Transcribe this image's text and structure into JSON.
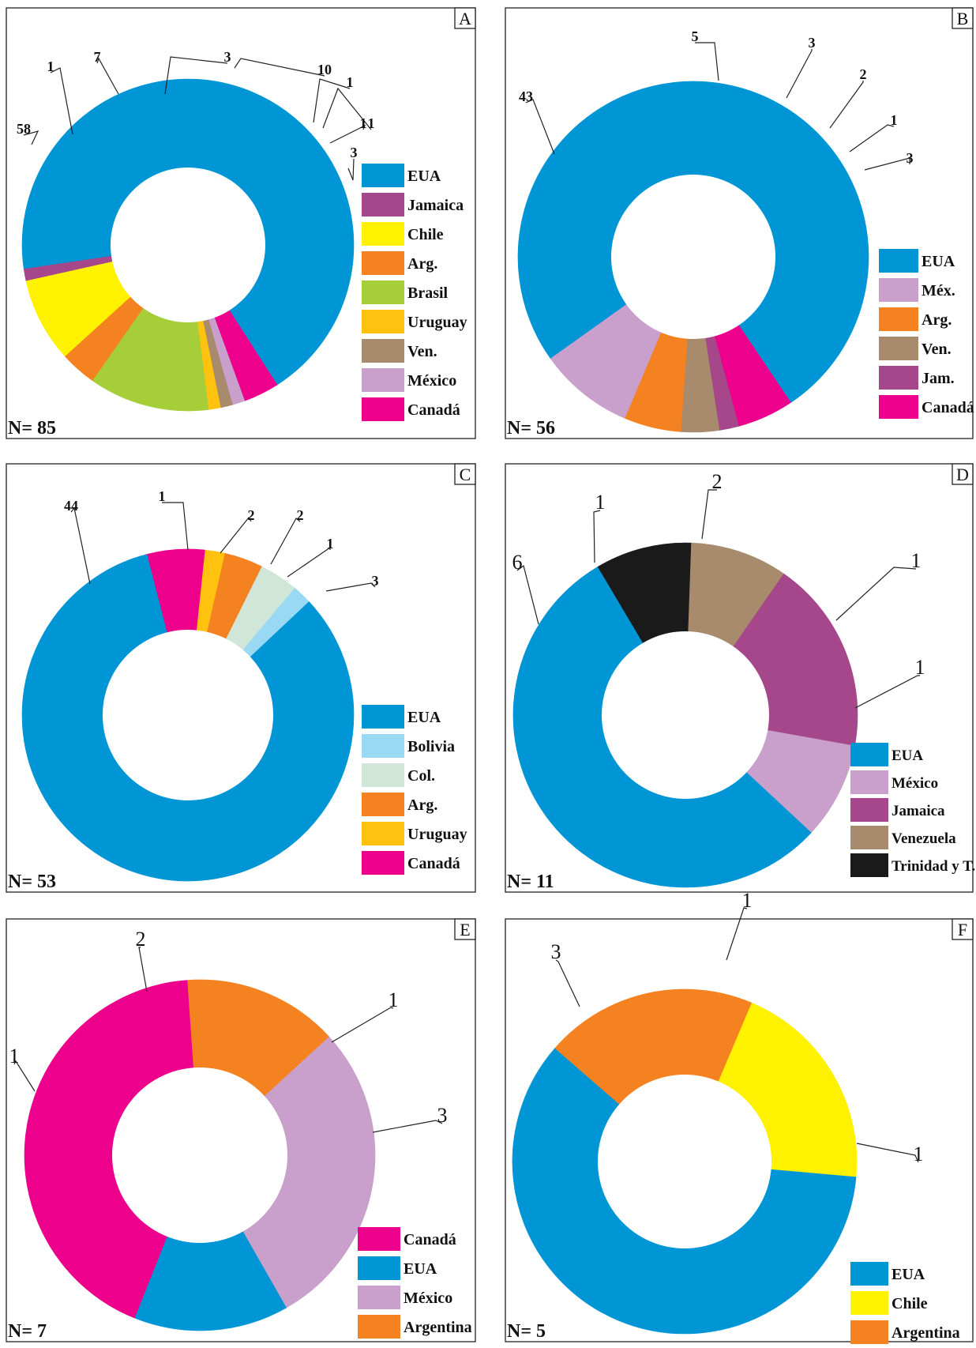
{
  "chart_data": [
    {
      "type": "donut",
      "panel_label": "A",
      "n_label": "N= 85",
      "categories": [
        "Canadá",
        "EUA",
        "Jamaica",
        "Chile",
        "Arg.",
        "Brasil",
        "Uruguay",
        "Ven.",
        "México"
      ],
      "values": [
        3,
        58,
        1,
        7,
        3,
        10,
        1,
        1,
        1
      ],
      "value_labels": [
        "3",
        "58",
        "1",
        "7",
        "3",
        "10",
        "1",
        "1",
        "1"
      ],
      "colors": [
        "#ec008c",
        "#0096d6",
        "#a5478a",
        "#fff200",
        "#f58220",
        "#a6ce39",
        "#ffc20e",
        "#a88a6c",
        "#c9a0cb"
      ],
      "legend": [
        "EUA",
        "Jamaica",
        "Chile",
        "Arg.",
        "Brasil",
        "Uruguay",
        "Ven.",
        "México",
        "Canadá"
      ]
    },
    {
      "type": "donut",
      "panel_label": "B",
      "n_label": "N= 56",
      "categories": [
        "Canadá",
        "EUA",
        "Méx.",
        "Arg.",
        "Ven.",
        "Jam."
      ],
      "values": [
        3,
        43,
        5,
        3,
        2,
        1
      ],
      "value_labels": [
        "3",
        "43",
        "5",
        "3",
        "2",
        "1"
      ],
      "colors": [
        "#ec008c",
        "#0096d6",
        "#c9a0cb",
        "#f58220",
        "#a88a6c",
        "#a5478a"
      ],
      "legend": [
        "EUA",
        "Méx.",
        "Arg.",
        "Ven.",
        "Jam.",
        "Canadá"
      ]
    },
    {
      "type": "donut",
      "panel_label": "C",
      "n_label": "N= 53",
      "categories": [
        "Canadá",
        "EUA",
        "Bolivia",
        "Col.",
        "Arg.",
        "Uruguay"
      ],
      "values": [
        3,
        44,
        1,
        2,
        2,
        1
      ],
      "value_labels": [
        "3",
        "44",
        "1",
        "2",
        "2",
        "1"
      ],
      "colors": [
        "#ec008c",
        "#0096d6",
        "#99d9f4",
        "#cfe6d9",
        "#f58220",
        "#ffc20e"
      ],
      "legend": [
        "EUA",
        "Bolivia",
        "Col.",
        "Arg.",
        "Uruguay",
        "Canadá"
      ]
    },
    {
      "type": "donut",
      "panel_label": "D",
      "n_label": "N= 11",
      "categories": [
        "Trinidad y T.",
        "EUA",
        "México",
        "Jamaica",
        "Venezuela"
      ],
      "values": [
        1,
        6,
        1,
        2,
        1
      ],
      "value_labels": [
        "1",
        "6",
        "1",
        "2",
        "1"
      ],
      "colors": [
        "#1a1a1a",
        "#0096d6",
        "#c9a0cb",
        "#a5478a",
        "#a88a6c"
      ],
      "legend": [
        "EUA",
        "México",
        "Jamaica",
        "Venezuela",
        "Trinidad y T."
      ]
    },
    {
      "type": "donut",
      "panel_label": "E",
      "n_label": "N= 7",
      "categories": [
        "Canadá",
        "EUA",
        "México",
        "Argentina"
      ],
      "values": [
        3,
        1,
        2,
        1
      ],
      "value_labels": [
        "3",
        "1",
        "2",
        "1"
      ],
      "colors": [
        "#ec008c",
        "#0096d6",
        "#c9a0cb",
        "#f58220"
      ],
      "legend": [
        "Canadá",
        "EUA",
        "México",
        "Argentina"
      ]
    },
    {
      "type": "donut",
      "panel_label": "F",
      "n_label": "N= 5",
      "categories": [
        "Argentina",
        "EUA",
        "Chile"
      ],
      "values": [
        1,
        3,
        1
      ],
      "value_labels": [
        "1",
        "3",
        "1"
      ],
      "colors": [
        "#f58220",
        "#0096d6",
        "#fff200"
      ],
      "legend": [
        "EUA",
        "Chile",
        "Argentina"
      ]
    }
  ]
}
